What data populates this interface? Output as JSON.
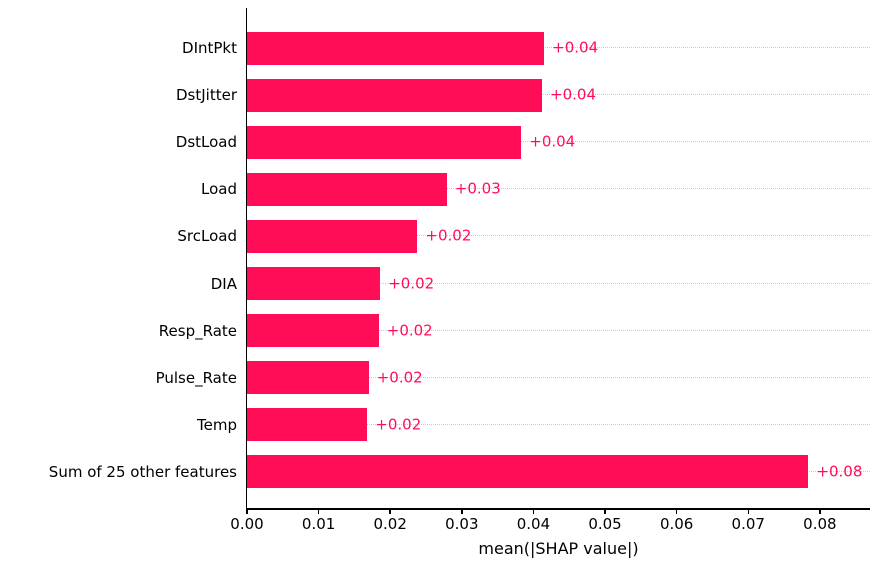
{
  "chart_data": {
    "type": "bar",
    "orientation": "horizontal",
    "title": "",
    "xlabel": "mean(|SHAP value|)",
    "ylabel": "",
    "categories": [
      "DIntPkt",
      "DstJitter",
      "DstLoad",
      "Load",
      "SrcLoad",
      "DIA",
      "Resp_Rate",
      "Pulse_Rate",
      "Temp",
      "Sum of 25 other features"
    ],
    "values": [
      0.0415,
      0.0412,
      0.0383,
      0.0279,
      0.0238,
      0.0186,
      0.0184,
      0.017,
      0.0168,
      0.0784
    ],
    "bar_labels": [
      "+0.04",
      "+0.04",
      "+0.04",
      "+0.03",
      "+0.02",
      "+0.02",
      "+0.02",
      "+0.02",
      "+0.02",
      "+0.08"
    ],
    "x_tick_labels": [
      "0.00",
      "0.01",
      "0.02",
      "0.03",
      "0.04",
      "0.05",
      "0.06",
      "0.07",
      "0.08"
    ],
    "xlim": [
      0,
      0.087
    ],
    "grid": "horizontal-dotted",
    "legend": "none",
    "colors": {
      "bar": "#ff0d57",
      "value_label": "#ff0d57",
      "axis": "#000000",
      "gridline": "#cccccc",
      "tick_label": "#000000",
      "background": "#ffffff"
    }
  }
}
